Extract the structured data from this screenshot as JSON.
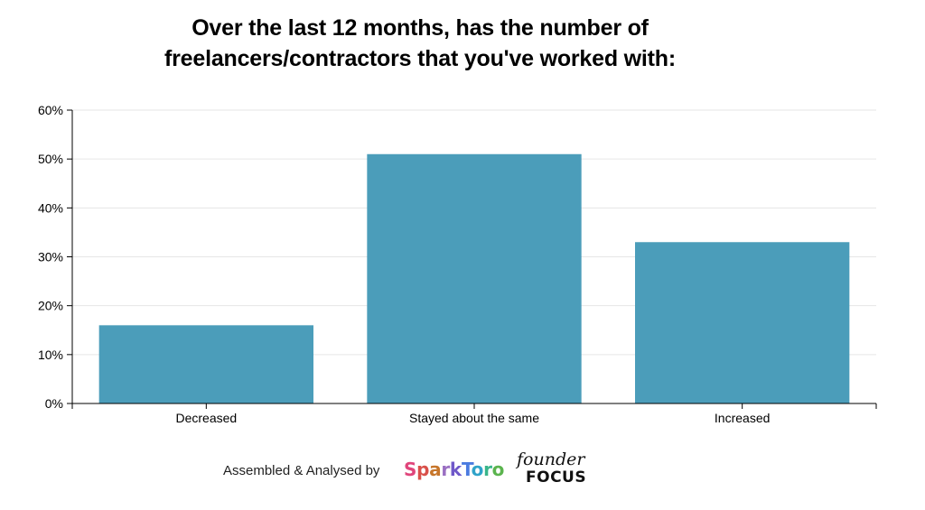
{
  "title_lines": [
    "Over the last 12 months, has the number of",
    "freelancers/contractors that you've worked with:"
  ],
  "chart_data": {
    "type": "bar",
    "title": "Over the last 12 months, has the number of freelancers/contractors that you've worked with:",
    "categories": [
      "Decreased",
      "Stayed about the same",
      "Increased"
    ],
    "values": [
      16,
      51,
      33
    ],
    "unit": "%",
    "ylim": [
      0,
      60
    ],
    "yticks": [
      0,
      10,
      20,
      30,
      40,
      50,
      60
    ],
    "ytick_labels": [
      "0%",
      "10%",
      "20%",
      "30%",
      "40%",
      "50%",
      "60%"
    ],
    "xlabel": "",
    "ylabel": "",
    "grid": true,
    "bar_color": "#4b9dba",
    "grid_color": "#e6e6e6"
  },
  "footer": {
    "credit": "Assembled & Analysed by",
    "logos": [
      {
        "name": "sparktoro-logo",
        "text": "SparkToro"
      },
      {
        "name": "founder-focus-logo",
        "text": "founder FOCUS"
      }
    ]
  }
}
